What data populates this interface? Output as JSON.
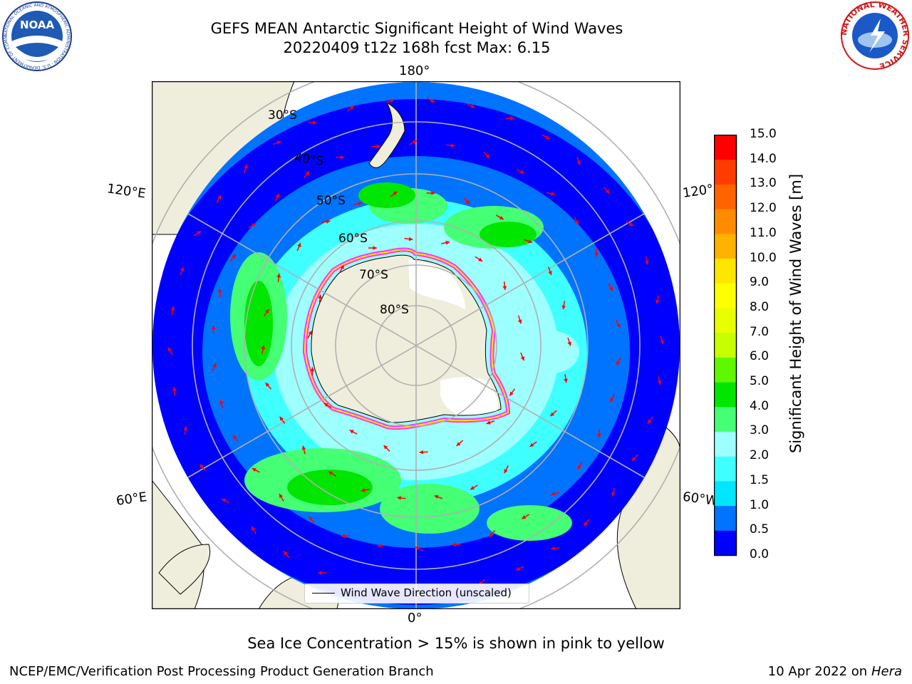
{
  "header": {
    "title_line1": "GEFS MEAN Antarctic Significant Height of Wind Waves",
    "title_line2": "20220409 t12z 168h fcst   Max: 6.15"
  },
  "logos": {
    "left_text": "NOAA",
    "left_ring": "NATIONAL OCEANIC AND ATMOSPHERIC ADMINISTRATION · U.S. DEPARTMENT OF COMMERCE",
    "right_ring": "NATIONAL WEATHER SERVICE"
  },
  "map": {
    "projection": "south-polar-stereographic",
    "longitude_labels": {
      "top": "180°",
      "bottom": "0°",
      "left_upper": "120°E",
      "left_lower": "60°E",
      "right_upper": "120°",
      "right_lower": "60°W"
    },
    "latitude_labels": [
      "30°S",
      "40°S",
      "50°S",
      "60°S",
      "70°S",
      "80°S"
    ],
    "legend_label": "Wind Wave Direction (unscaled)",
    "colors": {
      "land": "#efeedc",
      "ice": "#ffffff",
      "arrow": "#ff0000",
      "grid": "#b0b0b0"
    }
  },
  "colorbar": {
    "title": "Significant Height of Wind Waves [m]",
    "ticks": [
      "0.0",
      "0.5",
      "1.0",
      "1.5",
      "2.0",
      "3.0",
      "4.0",
      "5.0",
      "6.0",
      "7.0",
      "8.0",
      "9.0",
      "10.0",
      "11.0",
      "12.0",
      "13.0",
      "14.0",
      "15.0"
    ],
    "colors": [
      "#0000ff",
      "#0073ff",
      "#00e6ff",
      "#40ffff",
      "#9effff",
      "#45ff74",
      "#00e600",
      "#5ef800",
      "#c8ff00",
      "#e8ff00",
      "#ffff00",
      "#ffe600",
      "#ffb300",
      "#ff8c00",
      "#ff6400",
      "#ff3c00",
      "#ff0000"
    ]
  },
  "footer": {
    "note": "Sea Ice Concentration > 15% is shown in pink to yellow",
    "left": "NCEP/EMC/Verification Post Processing Product Generation Branch",
    "right_prefix": "10 Apr 2022 on ",
    "right_italic": "Hera"
  }
}
